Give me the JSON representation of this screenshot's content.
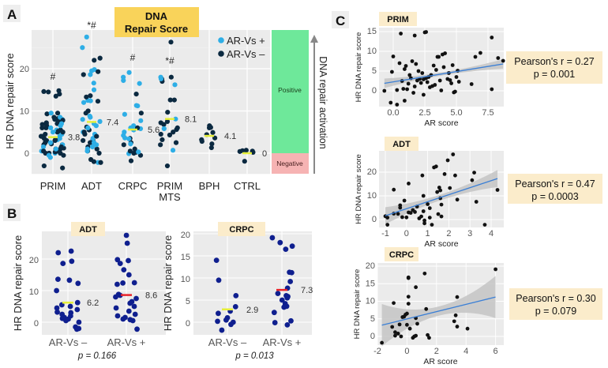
{
  "colors": {
    "ar_pos": "#2eaee6",
    "ar_neg": "#0b2940",
    "panel_b_points": "#0f1f8f",
    "median_a": "#e6ef3a",
    "median_b_neg": "#e6ef3a",
    "median_b_pos": "#e8232a",
    "title_box": "#f9d35a",
    "tag_box": "#fbeccb",
    "positive": "#6ee89a",
    "negative": "#f6b3b3",
    "plot_bg": "#ebebeb",
    "reg_line": "#3a7fd6",
    "ci_band": "#c4c4c4",
    "points_c": "#111111"
  },
  "panel_labels": {
    "a": "A",
    "b": "B",
    "c": "C"
  },
  "chart_data": [
    {
      "id": "A",
      "type": "scatter",
      "title": "DNA Repair Score",
      "ylabel": "HR DNA repair score",
      "ylim": [
        -5,
        29
      ],
      "yticks": [
        "0",
        "10",
        "20"
      ],
      "legend": {
        "placement": "top-right",
        "entries": [
          {
            "label": "AR-Vs +",
            "color_key": "ar_pos"
          },
          {
            "label": "AR-Vs –",
            "color_key": "ar_neg"
          }
        ]
      },
      "side_bar": {
        "label": "DNA repair activation",
        "positive": "Positive",
        "negative": "Negative"
      },
      "groups": [
        {
          "label": "PRIM",
          "label2": "",
          "median": 3.8,
          "median_label": "3.8",
          "annotation": "#",
          "ar_neg": [
            14.8,
            14.5,
            14.6,
            14.0,
            13.5,
            9.5,
            9.3,
            8.5,
            8,
            7.5,
            7.2,
            7,
            6.5,
            6,
            5.5,
            5,
            4.5,
            4,
            3.5,
            3,
            2.5,
            2,
            1.5,
            1,
            0.5,
            0,
            0,
            -0.5,
            -3,
            -3.5,
            7,
            6,
            5,
            4,
            3,
            2,
            1,
            0.5,
            0,
            8.2,
            7.8,
            2.2,
            1.2,
            6.8,
            5.2,
            3.3,
            0.3
          ],
          "ar_pos": [
            9.5,
            8.5,
            8,
            7,
            6,
            5,
            4.5,
            4,
            3.5,
            3,
            2.5,
            2,
            1.5,
            1,
            0.5,
            0,
            -0.5,
            -1,
            5.5,
            3.2,
            6.5
          ]
        },
        {
          "label": "ADT",
          "label2": "",
          "median": 7.4,
          "median_label": "7.4",
          "annotation": "*#",
          "ar_neg": [
            22.5,
            22,
            18.6,
            19.3,
            13.6,
            13.3,
            12.3,
            10,
            9.5,
            6.2,
            5.5,
            5,
            4.5,
            4,
            3,
            2.5,
            1.5,
            1,
            0.5,
            0,
            -1.5,
            -2,
            -2.2,
            3.2
          ],
          "ar_pos": [
            27.5,
            25,
            19.8,
            19.5,
            18.6,
            16.6,
            15,
            12.5,
            12.4,
            12,
            8.8,
            8.5,
            8,
            7.5,
            7,
            6.5,
            6,
            5,
            4.5,
            3.5,
            2.5,
            2,
            1.5,
            1,
            0.5,
            -2.2
          ]
        },
        {
          "label": "CRPC",
          "label2": "",
          "median": 5.6,
          "median_label": "5.6",
          "annotation": "#",
          "ar_neg": [
            14,
            9.5,
            6,
            3.5,
            2.5,
            2,
            1,
            0.5,
            0,
            -0.5,
            -1.8,
            0.2
          ],
          "ar_pos": [
            19.1,
            18,
            17.2,
            16.5,
            11.3,
            11.2,
            9.2,
            7.7,
            6.5,
            6,
            5.8,
            5.5,
            5,
            4.2,
            3.6,
            3.4,
            2.2,
            0.3,
            -0.1
          ]
        },
        {
          "label": "PRIM",
          "label2": "MTS",
          "median": 8.1,
          "median_label": "8.1",
          "annotation": "*#",
          "ar_neg": [
            26.3,
            18,
            17.5,
            17,
            12.6,
            12.6,
            9.7,
            7.5,
            7.2,
            6.8,
            6,
            5.6,
            5,
            4.5,
            4.3,
            3.2,
            2.5,
            2,
            -3
          ],
          "ar_pos": [
            18,
            17.6,
            16.2,
            5.8,
            0.7,
            8.1
          ]
        },
        {
          "label": "BPH",
          "label2": "",
          "median": 4.1,
          "median_label": "4.1",
          "annotation": "",
          "ar_neg": [
            6.5,
            6.1,
            6,
            4.9,
            4.4,
            3.6,
            3.2,
            2.8,
            2.2,
            1.3
          ],
          "ar_pos": []
        },
        {
          "label": "CTRL",
          "label2": "",
          "median": 0,
          "median_label": "0",
          "annotation": "",
          "ar_neg": [
            0.7,
            0.6,
            0.5,
            0.4,
            0.2,
            -1.9
          ],
          "ar_pos": []
        }
      ]
    },
    {
      "id": "B-ADT",
      "type": "scatter",
      "tag": "ADT",
      "ylabel": "HR DNA repair score",
      "yticks": [
        "0",
        "10",
        "20"
      ],
      "ylim": [
        -4,
        29
      ],
      "categories": [
        "AR-Vs –",
        "AR-Vs +"
      ],
      "medians": [
        6.2,
        8.6
      ],
      "median_labels": [
        "6.2",
        "8.6"
      ],
      "p_text": "p = 0.166",
      "values": [
        [
          22.5,
          22,
          18.6,
          19.3,
          13.6,
          13.3,
          12.3,
          10,
          6.2,
          5.5,
          5,
          4.5,
          4,
          3,
          2.5,
          2,
          1.5,
          1,
          0.5,
          0,
          -1.5,
          -2,
          -2.2,
          3.2,
          1.2
        ],
        [
          27.5,
          25,
          19.8,
          19.5,
          18.6,
          16.6,
          15,
          12.5,
          12.4,
          12,
          8.8,
          8.5,
          8,
          7.5,
          6.5,
          6,
          5,
          4.5,
          3.5,
          2.5,
          2,
          1.5,
          1,
          0.5,
          0.8,
          -2.2
        ]
      ]
    },
    {
      "id": "B-CRPC",
      "type": "scatter",
      "tag": "CRPC",
      "ylabel": "HR DNA repair score",
      "yticks": [
        "0",
        "5",
        "10",
        "15",
        "20"
      ],
      "ylim": [
        -3,
        20.5
      ],
      "categories": [
        "AR-Vs –",
        "AR-Vs +"
      ],
      "medians": [
        2.9,
        7.3
      ],
      "median_labels": [
        "2.9",
        "7.3"
      ],
      "p_text": "p = 0.013",
      "values": [
        [
          14,
          9.5,
          6,
          3.5,
          2.5,
          2,
          1,
          0.5,
          0,
          -0.5,
          -1.8,
          0.2
        ],
        [
          19.1,
          18,
          17.2,
          16.5,
          11.3,
          11.2,
          9.2,
          7.7,
          6.5,
          6,
          5.8,
          5.5,
          5,
          4.2,
          3.6,
          3.4,
          2.2,
          0.3,
          -0.6,
          -0.1
        ]
      ]
    },
    {
      "id": "C-PRIM",
      "type": "scatter",
      "tag": "PRIM",
      "xlabel": "AR score",
      "ylabel": "HR DNA repair score",
      "xticks": [
        "0.0",
        "2.5",
        "5.0",
        "7.5"
      ],
      "yticks": [
        "0",
        "5",
        "10",
        "15"
      ],
      "xlim": [
        -1,
        9
      ],
      "ylim": [
        -4.5,
        16
      ],
      "stats": {
        "line1": "Pearson's r = 0.27",
        "line2": "p = 0.001"
      },
      "fit": {
        "x": [
          -0.7,
          8.7
        ],
        "y": [
          1.9,
          6.8
        ],
        "ci_halfwidth_ends": 1.2,
        "ci_halfwidth_center": 0.4
      },
      "points": [
        [
          -0.7,
          0
        ],
        [
          0,
          8.7
        ],
        [
          -0.1,
          4.8
        ],
        [
          0.3,
          -3.5
        ],
        [
          -0.2,
          -3
        ],
        [
          0.6,
          14.5
        ],
        [
          0.9,
          -2.5
        ],
        [
          1.7,
          14
        ],
        [
          2.5,
          14.8
        ],
        [
          2.6,
          14.9
        ],
        [
          7.8,
          13.5
        ],
        [
          7.8,
          0.4
        ],
        [
          8.3,
          8.3
        ],
        [
          8.7,
          7.6
        ],
        [
          6.9,
          9.6
        ],
        [
          6.5,
          8.6
        ],
        [
          6.2,
          1.7
        ],
        [
          5.1,
          5.1
        ],
        [
          5.2,
          2.3
        ],
        [
          4.8,
          -0.4
        ],
        [
          4.7,
          6.5
        ],
        [
          4.4,
          4.5
        ],
        [
          4.1,
          9.5
        ],
        [
          3.9,
          9.2
        ],
        [
          3.6,
          8.6
        ],
        [
          3.4,
          5.3
        ],
        [
          3.2,
          6.4
        ],
        [
          3,
          4
        ],
        [
          2.8,
          3.5
        ],
        [
          2.4,
          -1
        ],
        [
          2.2,
          2
        ],
        [
          2,
          5
        ],
        [
          1.8,
          6.8
        ],
        [
          1.5,
          7.5
        ],
        [
          1.3,
          4
        ],
        [
          1.1,
          0.4
        ],
        [
          0.9,
          5.5
        ],
        [
          0.7,
          2.5
        ],
        [
          0.5,
          7
        ],
        [
          0.3,
          0.2
        ],
        [
          1.2,
          1.8
        ],
        [
          1.6,
          -0.5
        ],
        [
          2.1,
          3
        ],
        [
          2.6,
          3.2
        ],
        [
          2.9,
          0.9
        ],
        [
          3.3,
          1.5
        ],
        [
          3.7,
          2.6
        ],
        [
          4,
          6
        ],
        [
          4.3,
          3
        ],
        [
          4.6,
          1.9
        ],
        [
          4.9,
          -0.2
        ],
        [
          3.5,
          8.6
        ],
        [
          2.7,
          2.2
        ],
        [
          1.9,
          2.6
        ],
        [
          1,
          6.3
        ],
        [
          0.8,
          0.5
        ],
        [
          1.4,
          3.2
        ],
        [
          2.3,
          4.5
        ],
        [
          3.8,
          0.1
        ],
        [
          4.5,
          2.7
        ],
        [
          5,
          3.5
        ],
        [
          2.4,
          2.9
        ],
        [
          3.1,
          1.2
        ],
        [
          1.7,
          1.1
        ]
      ]
    },
    {
      "id": "C-ADT",
      "type": "scatter",
      "tag": "ADT",
      "xlabel": "AR score",
      "ylabel": "HR DNA repair score",
      "xticks": [
        "-1",
        "0",
        "1",
        "2",
        "3",
        "4"
      ],
      "yticks": [
        "0",
        "10",
        "20"
      ],
      "xlim": [
        -1.2,
        4.4
      ],
      "ylim": [
        -3.5,
        29
      ],
      "stats": {
        "line1": "Pearson's r = 0.47",
        "line2": "p = 0.0003"
      },
      "fit": {
        "x": [
          -1,
          4.3
        ],
        "y": [
          1.6,
          17.3
        ],
        "ci_halfwidth_ends": 3.6,
        "ci_halfwidth_center": 1.2
      },
      "points": [
        [
          -1,
          1.4
        ],
        [
          -0.9,
          -2.2
        ],
        [
          -0.9,
          0.8
        ],
        [
          -0.6,
          12.6
        ],
        [
          -0.6,
          2.5
        ],
        [
          -0.4,
          2.4
        ],
        [
          -0.3,
          6
        ],
        [
          -0.2,
          1
        ],
        [
          -0.1,
          8
        ],
        [
          0,
          0.9
        ],
        [
          0.1,
          3
        ],
        [
          0.1,
          15.2
        ],
        [
          0.3,
          4
        ],
        [
          0.4,
          3.2
        ],
        [
          0.5,
          5.5
        ],
        [
          0.6,
          0.5
        ],
        [
          0.7,
          1.3
        ],
        [
          0.75,
          18.6
        ],
        [
          0.8,
          3.5
        ],
        [
          0.8,
          10
        ],
        [
          0.85,
          -0.4
        ],
        [
          0.85,
          -1.6
        ],
        [
          1,
          6.5
        ],
        [
          1.1,
          4.8
        ],
        [
          1.1,
          0.8
        ],
        [
          1.2,
          -2.2
        ],
        [
          1.3,
          22
        ],
        [
          1.4,
          22.4
        ],
        [
          1.45,
          11.6
        ],
        [
          1.5,
          2.3
        ],
        [
          1.55,
          13.5
        ],
        [
          1.6,
          12.3
        ],
        [
          1.65,
          6.3
        ],
        [
          1.65,
          1.3
        ],
        [
          1.8,
          19.2
        ],
        [
          1.95,
          25
        ],
        [
          2.05,
          13.3
        ],
        [
          2.2,
          27.5
        ],
        [
          2.3,
          18.6
        ],
        [
          2.4,
          8.4
        ],
        [
          3.1,
          16.6
        ],
        [
          3.2,
          19.8
        ],
        [
          3.3,
          7.5
        ],
        [
          3.7,
          -2.2
        ],
        [
          4.3,
          12.5
        ],
        [
          -0.3,
          5
        ],
        [
          0.2,
          2.8
        ],
        [
          1.6,
          9
        ]
      ]
    },
    {
      "id": "C-CRPC",
      "type": "scatter",
      "tag": "CRPC",
      "xlabel": "AR score",
      "ylabel": "HR DNA repair score",
      "xticks": [
        "-2",
        "0",
        "2",
        "4",
        "6"
      ],
      "yticks": [
        "0",
        "5",
        "10",
        "15",
        "20"
      ],
      "xlim": [
        -2,
        6.3
      ],
      "ylim": [
        -2.4,
        21
      ],
      "stats": {
        "line1": "Pearson's r = 0.30",
        "line2": "p = 0.079"
      },
      "fit": {
        "x": [
          -1.7,
          6
        ],
        "y": [
          3.2,
          11.2
        ],
        "ci_halfwidth_ends": 6,
        "ci_halfwidth_center": 1.3
      },
      "points": [
        [
          -1.7,
          -1.8
        ],
        [
          -1,
          2.7
        ],
        [
          -0.9,
          9.5
        ],
        [
          -0.8,
          1.2
        ],
        [
          -0.8,
          0.2
        ],
        [
          -0.6,
          0.8
        ],
        [
          -0.5,
          3.4
        ],
        [
          -0.4,
          0
        ],
        [
          -0.3,
          5.5
        ],
        [
          -0.2,
          5.6
        ],
        [
          -0.1,
          6.2
        ],
        [
          0,
          6.5
        ],
        [
          0,
          3.3
        ],
        [
          0.1,
          16.8
        ],
        [
          0.1,
          16.6
        ],
        [
          0.1,
          11.3
        ],
        [
          0.1,
          9.3
        ],
        [
          0.2,
          2.2
        ],
        [
          0.4,
          -0.4
        ],
        [
          0.5,
          0
        ],
        [
          0.6,
          0.2
        ],
        [
          0.6,
          14
        ],
        [
          0.6,
          5.2
        ],
        [
          0.7,
          3.6
        ],
        [
          1.2,
          17.9
        ],
        [
          1.3,
          7.8
        ],
        [
          1.4,
          0.4
        ],
        [
          1.5,
          -0.4
        ],
        [
          3.2,
          4.3
        ],
        [
          3.3,
          6
        ],
        [
          3.4,
          11.2
        ],
        [
          3.4,
          2.8
        ],
        [
          4.1,
          2.2
        ],
        [
          6,
          19.1
        ]
      ]
    }
  ]
}
